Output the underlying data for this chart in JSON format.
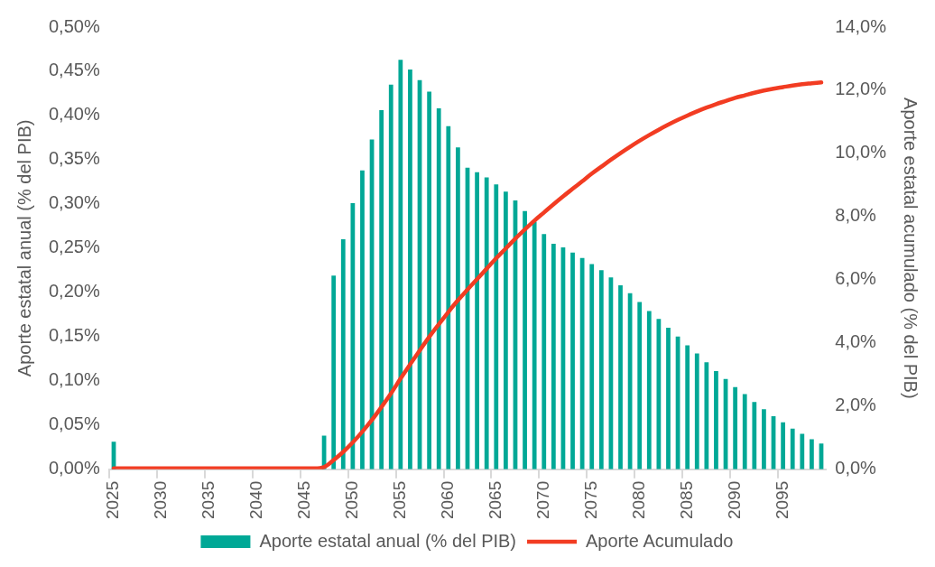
{
  "chart_data": {
    "type": "bar",
    "categories": [
      "2025",
      null,
      null,
      null,
      null,
      "2030",
      null,
      null,
      null,
      null,
      "2035",
      null,
      null,
      null,
      null,
      "2040",
      null,
      null,
      null,
      null,
      "2045",
      null,
      null,
      null,
      null,
      "2050",
      null,
      null,
      null,
      null,
      "2055",
      null,
      null,
      null,
      null,
      "2060",
      null,
      null,
      null,
      null,
      "2065",
      null,
      null,
      null,
      null,
      "2070",
      null,
      null,
      null,
      null,
      "2075",
      null,
      null,
      null,
      null,
      "2080",
      null,
      null,
      null,
      null,
      "2085",
      null,
      null,
      null,
      null,
      "2090",
      null,
      null,
      null,
      null,
      "2095",
      null,
      null,
      null,
      null
    ],
    "ylabel": "Aporte estatal anual (% del PIB)",
    "y2label": "Aporte estatal acumulado (% del PIB)",
    "series": [
      {
        "name": "Aporte estatal anual (% del PIB)",
        "color": "#00a896",
        "values": [
          0.031,
          0,
          0,
          0,
          0,
          0,
          0,
          0,
          0,
          0,
          0,
          0,
          0,
          0,
          0,
          0,
          0,
          0,
          0,
          0,
          0,
          0,
          0.038,
          0.219,
          0.26,
          0.301,
          0.338,
          0.373,
          0.406,
          0.435,
          0.463,
          0.452,
          0.44,
          0.427,
          0.408,
          0.388,
          0.364,
          0.341,
          0.336,
          0.33,
          0.322,
          0.314,
          0.304,
          0.292,
          0.28,
          0.266,
          0.255,
          0.251,
          0.245,
          0.239,
          0.232,
          0.225,
          0.217,
          0.208,
          0.199,
          0.189,
          0.179,
          0.17,
          0.16,
          0.15,
          0.14,
          0.131,
          0.121,
          0.111,
          0.102,
          0.093,
          0.085,
          0.076,
          0.068,
          0.06,
          0.053,
          0.046,
          0.04,
          0.034,
          0.029
        ]
      },
      {
        "name": "Aporte Acumulado",
        "type": "line",
        "axis": "y2",
        "color": "#f23c22",
        "values": [
          0.03,
          0.03,
          0.03,
          0.03,
          0.03,
          0.03,
          0.03,
          0.03,
          0.03,
          0.03,
          0.03,
          0.03,
          0.03,
          0.03,
          0.03,
          0.03,
          0.03,
          0.03,
          0.03,
          0.03,
          0.03,
          0.03,
          0.07,
          0.29,
          0.55,
          0.85,
          1.19,
          1.56,
          1.97,
          2.4,
          2.87,
          3.32,
          3.76,
          4.19,
          4.59,
          4.98,
          5.35,
          5.69,
          6.02,
          6.35,
          6.68,
          6.99,
          7.3,
          7.59,
          7.87,
          8.13,
          8.39,
          8.64,
          8.88,
          9.12,
          9.36,
          9.58,
          9.8,
          10.01,
          10.21,
          10.4,
          10.58,
          10.75,
          10.91,
          11.06,
          11.2,
          11.33,
          11.45,
          11.56,
          11.66,
          11.76,
          11.84,
          11.92,
          11.99,
          12.05,
          12.1,
          12.15,
          12.19,
          12.22,
          12.25
        ]
      }
    ],
    "ylim": [
      0,
      0.5
    ],
    "yticks": [
      {
        "value": 0,
        "label": "0,00%"
      },
      {
        "value": 0.05,
        "label": "0,05%"
      },
      {
        "value": 0.1,
        "label": "0,10%"
      },
      {
        "value": 0.15,
        "label": "0,15%"
      },
      {
        "value": 0.2,
        "label": "0,20%"
      },
      {
        "value": 0.25,
        "label": "0,25%"
      },
      {
        "value": 0.3,
        "label": "0,30%"
      },
      {
        "value": 0.35,
        "label": "0,35%"
      },
      {
        "value": 0.4,
        "label": "0,40%"
      },
      {
        "value": 0.45,
        "label": "0,45%"
      },
      {
        "value": 0.5,
        "label": "0,50%"
      }
    ],
    "y2lim": [
      0,
      14
    ],
    "y2ticks": [
      {
        "value": 0,
        "label": "0,0%"
      },
      {
        "value": 2,
        "label": "2,0%"
      },
      {
        "value": 4,
        "label": "4,0%"
      },
      {
        "value": 6,
        "label": "6,0%"
      },
      {
        "value": 8,
        "label": "8,0%"
      },
      {
        "value": 10,
        "label": "10,0%"
      },
      {
        "value": 12,
        "label": "12,0%"
      },
      {
        "value": 14,
        "label": "14,0%"
      }
    ],
    "grid": false,
    "legend": "bottom",
    "marker": "none",
    "line_style": "solid"
  }
}
